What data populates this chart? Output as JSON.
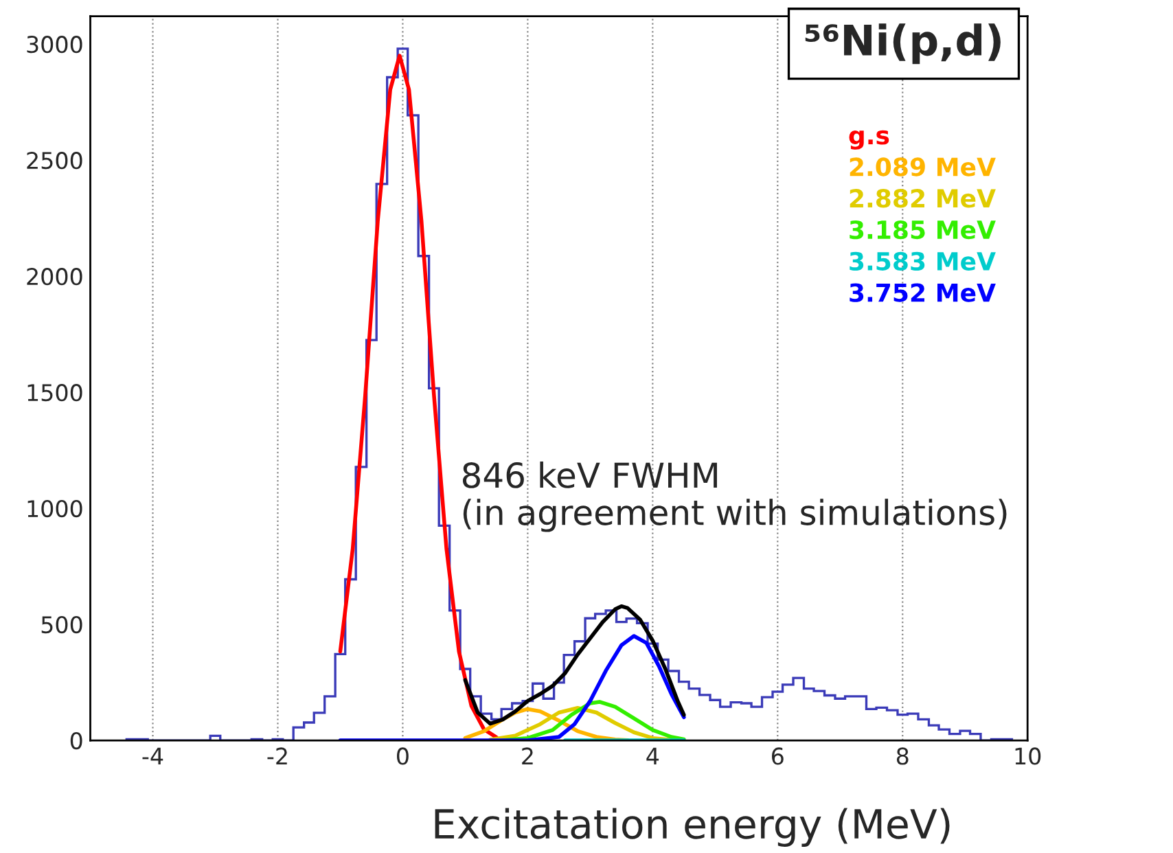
{
  "chart_data": {
    "type": "histogram",
    "title": "⁵⁶Ni(p,d)",
    "xlabel": "Excitatation energy (MeV)",
    "annotations": [
      "846 keV FWHM\n(in agreement with simulations)"
    ],
    "bins": [
      -4.42,
      -4.25,
      -4.08,
      -3.92,
      -3.75,
      -3.58,
      -3.42,
      -3.25,
      -3.08,
      -2.92,
      -2.75,
      -2.58,
      -2.42,
      -2.25,
      -2.08,
      -1.92,
      -1.75,
      -1.58,
      -1.42,
      -1.25,
      -1.08,
      -0.92,
      -0.75,
      -0.58,
      -0.42,
      -0.25,
      -0.08,
      0.08,
      0.25,
      0.42,
      0.58,
      0.75,
      0.92,
      1.08,
      1.25,
      1.42,
      1.58,
      1.75,
      1.92,
      2.08,
      2.25,
      2.42,
      2.58,
      2.75,
      2.92,
      3.08,
      3.25,
      3.42,
      3.58,
      3.75,
      3.92,
      4.08,
      4.25,
      4.42,
      4.58,
      4.75,
      4.92,
      5.08,
      5.25,
      5.42,
      5.58,
      5.75,
      5.92,
      6.08,
      6.25,
      6.42,
      6.58,
      6.75,
      6.92,
      7.08,
      7.25,
      7.42,
      7.58,
      7.75,
      7.92,
      8.08,
      8.25,
      8.42,
      8.58,
      8.75,
      8.92,
      9.08,
      9.25,
      9.42,
      9.58,
      9.75
    ],
    "values": [
      5,
      5,
      0,
      0,
      0,
      0,
      0,
      0,
      20,
      0,
      0,
      0,
      5,
      0,
      5,
      0,
      56,
      77,
      119,
      190,
      372,
      694,
      1178,
      1725,
      2397,
      2857,
      2980,
      2693,
      2087,
      1517,
      925,
      560,
      308,
      190,
      115,
      91,
      135,
      160,
      170,
      245,
      180,
      249,
      368,
      427,
      526,
      545,
      560,
      510,
      525,
      505,
      417,
      348,
      299,
      253,
      223,
      196,
      174,
      145,
      164,
      160,
      145,
      186,
      210,
      240,
      269,
      223,
      213,
      194,
      180,
      190,
      190,
      135,
      141,
      130,
      111,
      115,
      91,
      65,
      47,
      28,
      41,
      28,
      0,
      5,
      5
    ],
    "color": "#3a3ab8",
    "series": [
      {
        "name": "g.s",
        "type": "line",
        "color": "#ff0000",
        "x": [
          -1.0,
          -0.8,
          -0.6,
          -0.4,
          -0.2,
          -0.05,
          0.1,
          0.3,
          0.5,
          0.7,
          0.9,
          1.1,
          1.3,
          1.5
        ],
        "values": [
          383,
          826,
          1487,
          2236,
          2804,
          2950,
          2804,
          2236,
          1487,
          826,
          383,
          148,
          48,
          13
        ]
      },
      {
        "name": "2.089 MeV",
        "type": "line",
        "color": "#ffb400",
        "x": [
          1.0,
          1.3,
          1.6,
          1.8,
          2.0,
          2.2,
          2.5,
          2.8,
          3.1,
          3.4,
          3.6
        ],
        "values": [
          10,
          40,
          90,
          120,
          135,
          125,
          85,
          40,
          15,
          4,
          1
        ]
      },
      {
        "name": "2.882 MeV",
        "type": "line",
        "color": "#e0cc00",
        "x": [
          1.4,
          1.8,
          2.2,
          2.5,
          2.8,
          3.1,
          3.4,
          3.7,
          4.0,
          4.3
        ],
        "values": [
          3,
          20,
          70,
          120,
          140,
          120,
          75,
          35,
          10,
          2
        ]
      },
      {
        "name": "3.185 MeV",
        "type": "line",
        "color": "#33ee00",
        "x": [
          1.6,
          2.0,
          2.4,
          2.7,
          3.0,
          3.15,
          3.4,
          3.7,
          4.0,
          4.3,
          4.5
        ],
        "values": [
          0,
          10,
          45,
          110,
          160,
          166,
          145,
          95,
          45,
          15,
          5
        ]
      },
      {
        "name": "3.583 MeV",
        "type": "line",
        "color": "#00cccc",
        "x": [
          2.6,
          3.5,
          4.5
        ],
        "values": [
          0,
          0,
          0
        ]
      },
      {
        "name": "3.752 MeV",
        "type": "line",
        "color": "#0000ff",
        "x": [
          -1.0,
          2.0,
          2.5,
          2.75,
          3.0,
          3.25,
          3.5,
          3.7,
          3.9,
          4.1,
          4.3,
          4.5
        ],
        "values": [
          0,
          0,
          15,
          70,
          170,
          300,
          410,
          450,
          420,
          320,
          200,
          100
        ]
      },
      {
        "type": "line",
        "color": "#000000",
        "x": [
          1.0,
          1.2,
          1.4,
          1.6,
          1.8,
          2.0,
          2.2,
          2.4,
          2.6,
          2.8,
          3.0,
          3.2,
          3.4,
          3.5,
          3.6,
          3.8,
          4.0,
          4.2,
          4.4,
          4.5
        ],
        "values": [
          260,
          120,
          72,
          90,
          125,
          170,
          200,
          235,
          290,
          370,
          440,
          510,
          565,
          578,
          570,
          520,
          430,
          310,
          170,
          110
        ]
      }
    ],
    "xlim": [
      -5,
      10
    ],
    "ylim": [
      0,
      3120
    ],
    "xticks": [
      -4,
      -2,
      0,
      2,
      4,
      6,
      8,
      10
    ],
    "yticks": [
      0,
      500,
      1000,
      1500,
      2000,
      2500,
      3000
    ],
    "grid": "x",
    "legend": "top right"
  }
}
